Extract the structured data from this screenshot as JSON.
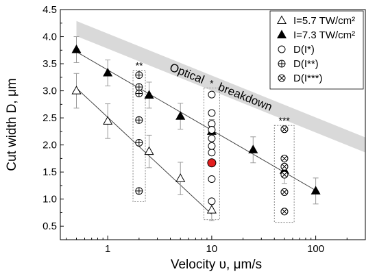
{
  "chart_data": {
    "type": "scatter",
    "xlabel": "Velocity υ, μm/s",
    "ylabel": "Cut width D, μm",
    "x_scale": "log",
    "xlim": [
      0.35,
      300
    ],
    "ylim": [
      0.25,
      4.5
    ],
    "x_ticks": [
      1,
      10,
      100
    ],
    "x_tick_labels": [
      "1",
      "10",
      "100"
    ],
    "y_ticks": [
      0.5,
      1.0,
      1.5,
      2.0,
      2.5,
      3.0,
      3.5,
      4.0,
      4.5
    ],
    "y_tick_labels": [
      "0.5",
      "1.0",
      "1.5",
      "2.0",
      "2.5",
      "3.0",
      "3.5",
      "4.0",
      "4.5"
    ],
    "grid": false,
    "legend_position": "top-right",
    "band": {
      "label": "Optical breakdown",
      "label_parts": [
        "Optical",
        "breakdown"
      ],
      "x": [
        0.5,
        300
      ],
      "y_center_start": 4.15,
      "y_center_end": 2.0,
      "color": "#d9d9d9"
    },
    "series": [
      {
        "name": "I=5.7 TW/cm2",
        "legend_label": "I=5.7 TW/cm²",
        "marker": "open-triangle",
        "x": [
          0.5,
          1,
          2.5,
          5,
          10
        ],
        "y": [
          3.0,
          2.44,
          1.88,
          1.38,
          0.8
        ],
        "err": [
          0.32,
          0.32,
          0.3,
          0.3,
          0.2
        ],
        "fit_x": [
          0.5,
          10
        ],
        "fit_y": [
          3.05,
          0.72
        ]
      },
      {
        "name": "I=7.3 TW/cm2",
        "legend_label": "I=7.3 TW/cm²",
        "marker": "filled-triangle",
        "x": [
          0.5,
          1,
          2.5,
          5,
          10,
          25,
          50,
          100
        ],
        "y": [
          3.76,
          3.33,
          2.92,
          2.53,
          2.25,
          1.91,
          1.53,
          1.15
        ],
        "err": [
          0.24,
          0.24,
          0.24,
          0.24,
          0.22,
          0.24,
          0.24,
          0.24
        ],
        "fit_x": [
          0.5,
          100
        ],
        "fit_y": [
          3.72,
          1.16
        ]
      },
      {
        "name": "D(I*)",
        "marker": "open-circle",
        "x": [
          10,
          10,
          10,
          10,
          10,
          10,
          10,
          10,
          10
        ],
        "y": [
          2.93,
          2.39,
          2.28,
          2.12,
          1.86,
          1.37,
          0.96,
          2.59,
          1.98
        ]
      },
      {
        "name": "D(I**)",
        "marker": "circle-plus",
        "x": [
          2,
          2,
          2,
          2,
          2,
          2
        ],
        "y": [
          3.29,
          3.07,
          2.95,
          2.46,
          2.04,
          1.15
        ]
      },
      {
        "name": "D(I***)",
        "marker": "circle-cross",
        "x": [
          50,
          50,
          50,
          50,
          50,
          50
        ],
        "y": [
          2.29,
          1.75,
          1.45,
          1.13,
          0.77,
          1.6
        ]
      }
    ],
    "highlight_point": {
      "x": 10,
      "y": 1.67,
      "color": "#e31e1e"
    },
    "groups": [
      {
        "label": "**",
        "x_range": [
          1.75,
          2.3
        ],
        "y_range": [
          0.95,
          3.38
        ]
      },
      {
        "label": "*",
        "x_range": [
          8.4,
          11.9
        ],
        "y_range": [
          0.62,
          3.05
        ]
      },
      {
        "label": "***",
        "x_range": [
          40,
          62
        ],
        "y_range": [
          0.57,
          2.36
        ]
      }
    ],
    "legend": [
      {
        "label": "I=5.7 TW/cm²",
        "marker": "open-triangle"
      },
      {
        "label": "I=7.3 TW/cm²",
        "marker": "filled-triangle"
      },
      {
        "label": "D(I*)",
        "marker": "open-circle"
      },
      {
        "label": "D(I**)",
        "marker": "circle-plus"
      },
      {
        "label": "D(I***)",
        "marker": "circle-cross"
      }
    ],
    "colors": {
      "line": "#444444",
      "errorbar": "#999999",
      "box": "#666666",
      "band": "#d9d9d9"
    }
  }
}
